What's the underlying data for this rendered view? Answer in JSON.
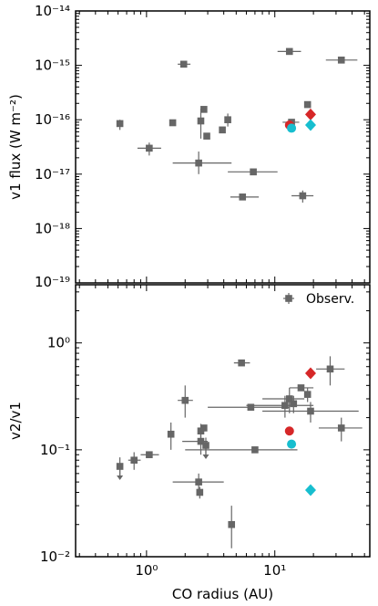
{
  "colors": {
    "observed": "#666666",
    "model_red": "#d62728",
    "model_cyan": "#17becf",
    "axes": "#000000"
  },
  "chart_data": [
    {
      "type": "scatter",
      "panel": "top",
      "xscale": "log",
      "yscale": "log",
      "xlim": [
        0.28,
        55
      ],
      "ylim": [
        1e-19,
        1e-14
      ],
      "xlabel": "",
      "ylabel": "v1 flux (W m⁻²)",
      "xticklabels": [],
      "ytick_values": [
        -19,
        -18,
        -17,
        -16,
        -15,
        -14
      ],
      "series": [
        {
          "kind": "observed",
          "marker": "square",
          "color": "#666666",
          "points": [
            {
              "x": 0.62,
              "y": 8.5e-17,
              "xerr": [
                0.6,
                0.64
              ],
              "yerr": [
                6.5e-17,
                1e-16
              ]
            },
            {
              "x": 1.05,
              "y": 3e-17,
              "xerr": [
                0.85,
                1.3
              ],
              "yerr": [
                2.2e-17,
                3.8e-17
              ]
            },
            {
              "x": 1.6,
              "y": 8.8e-17
            },
            {
              "x": 1.95,
              "y": 1.05e-15,
              "xerr": [
                1.75,
                2.2
              ]
            },
            {
              "x": 2.55,
              "y": 1.6e-17,
              "xerr": [
                1.6,
                4.6
              ],
              "yerr": [
                1e-17,
                2.6e-17
              ]
            },
            {
              "x": 2.65,
              "y": 9.5e-17,
              "yerr": [
                4.5e-17,
                1.6e-16
              ]
            },
            {
              "x": 2.8,
              "y": 1.55e-16
            },
            {
              "x": 2.95,
              "y": 5e-17
            },
            {
              "x": 3.9,
              "y": 6.5e-17
            },
            {
              "x": 4.3,
              "y": 1e-16,
              "yerr": [
                7.5e-17,
                1.3e-16
              ]
            },
            {
              "x": 5.6,
              "y": 3.8e-18,
              "xerr": [
                4.5,
                7.5
              ]
            },
            {
              "x": 6.8,
              "y": 1.1e-17,
              "xerr": [
                4.3,
                10.5
              ]
            },
            {
              "x": 13.0,
              "y": 1.8e-15,
              "xerr": [
                10.5,
                16.0
              ]
            },
            {
              "x": 13.5,
              "y": 9e-17,
              "xerr": [
                11.5,
                15.5
              ]
            },
            {
              "x": 16.5,
              "y": 4e-18,
              "xerr": [
                13.5,
                20.0
              ],
              "yerr": [
                3e-18,
                5e-18
              ]
            },
            {
              "x": 18.0,
              "y": 1.9e-16
            },
            {
              "x": 33.0,
              "y": 1.25e-15,
              "xerr": [
                25.0,
                44.0
              ]
            }
          ]
        },
        {
          "kind": "model",
          "marker": "circle",
          "color": "#d62728",
          "points": [
            {
              "x": 13.0,
              "y": 8e-17
            }
          ]
        },
        {
          "kind": "model",
          "marker": "circle",
          "color": "#17becf",
          "points": [
            {
              "x": 13.5,
              "y": 7e-17
            }
          ]
        },
        {
          "kind": "model",
          "marker": "diamond",
          "color": "#d62728",
          "points": [
            {
              "x": 19.0,
              "y": 1.25e-16
            }
          ]
        },
        {
          "kind": "model",
          "marker": "diamond",
          "color": "#17becf",
          "points": [
            {
              "x": 19.0,
              "y": 8e-17
            }
          ]
        }
      ]
    },
    {
      "type": "scatter",
      "panel": "bottom",
      "xscale": "log",
      "yscale": "log",
      "xlim": [
        0.28,
        55
      ],
      "ylim": [
        0.01,
        3.5
      ],
      "xlabel": "CO radius (AU)",
      "ylabel": "v2/v1",
      "xticklabels": [
        "10⁰",
        "10¹"
      ],
      "ytick_values": [
        -2,
        -1,
        0
      ],
      "legend": {
        "position": "top-right",
        "entries": [
          "Observ."
        ]
      },
      "series": [
        {
          "kind": "observed",
          "name": "Observ.",
          "marker": "square",
          "color": "#666666",
          "points": [
            {
              "x": 0.62,
              "y": 0.07,
              "xerr": [
                0.6,
                0.64
              ],
              "yerr": [
                0.055,
                0.085
              ],
              "upper": true
            },
            {
              "x": 0.8,
              "y": 0.08,
              "xerr": [
                0.72,
                0.9
              ],
              "yerr": [
                0.065,
                0.095
              ]
            },
            {
              "x": 1.05,
              "y": 0.09,
              "xerr": [
                0.9,
                1.25
              ]
            },
            {
              "x": 1.55,
              "y": 0.14,
              "yerr": [
                0.1,
                0.18
              ]
            },
            {
              "x": 2.0,
              "y": 0.29,
              "xerr": [
                1.75,
                2.3
              ],
              "yerr": [
                0.2,
                0.4
              ]
            },
            {
              "x": 2.55,
              "y": 0.05,
              "xerr": [
                1.6,
                4.0
              ],
              "yerr": [
                0.04,
                0.06
              ]
            },
            {
              "x": 2.6,
              "y": 0.04,
              "yerr": [
                0.035,
                0.045
              ]
            },
            {
              "x": 2.65,
              "y": 0.15,
              "yerr": [
                0.12,
                0.175
              ]
            },
            {
              "x": 2.65,
              "y": 0.12,
              "xerr": [
                1.9,
                3.0
              ],
              "yerr": [
                0.09,
                0.15
              ]
            },
            {
              "x": 2.8,
              "y": 0.16
            },
            {
              "x": 2.9,
              "y": 0.11,
              "yerr": [
                0.09,
                0.13
              ],
              "upper": true
            },
            {
              "x": 4.6,
              "y": 0.02,
              "yerr": [
                0.012,
                0.03
              ]
            },
            {
              "x": 5.5,
              "y": 0.65,
              "xerr": [
                4.8,
                6.4
              ]
            },
            {
              "x": 6.5,
              "y": 0.25,
              "xerr": [
                3.0,
                13.0
              ]
            },
            {
              "x": 7.0,
              "y": 0.1,
              "xerr": [
                2.0,
                15.0
              ]
            },
            {
              "x": 12.0,
              "y": 0.26,
              "xerr": [
                6.0,
                20.0
              ],
              "yerr": [
                0.2,
                0.32
              ]
            },
            {
              "x": 13.0,
              "y": 0.3,
              "xerr": [
                8.0,
                17.0
              ],
              "yerr": [
                0.22,
                0.38
              ]
            },
            {
              "x": 14.0,
              "y": 0.27,
              "yerr": [
                0.22,
                0.32
              ]
            },
            {
              "x": 16.0,
              "y": 0.38,
              "xerr": [
                13.0,
                20.0
              ]
            },
            {
              "x": 18.0,
              "y": 0.33,
              "yerr": [
                0.28,
                0.38
              ]
            },
            {
              "x": 19.0,
              "y": 0.23,
              "xerr": [
                8.0,
                45.0
              ],
              "yerr": [
                0.18,
                0.28
              ]
            },
            {
              "x": 27.0,
              "y": 0.57,
              "xerr": [
                21.0,
                35.0
              ],
              "yerr": [
                0.4,
                0.75
              ]
            },
            {
              "x": 33.0,
              "y": 0.16,
              "xerr": [
                22.0,
                48.0
              ],
              "yerr": [
                0.12,
                0.2
              ]
            }
          ]
        },
        {
          "kind": "model",
          "marker": "circle",
          "color": "#d62728",
          "points": [
            {
              "x": 13.0,
              "y": 0.15
            }
          ]
        },
        {
          "kind": "model",
          "marker": "circle",
          "color": "#17becf",
          "points": [
            {
              "x": 13.5,
              "y": 0.113
            }
          ]
        },
        {
          "kind": "model",
          "marker": "diamond",
          "color": "#d62728",
          "points": [
            {
              "x": 19.0,
              "y": 0.52
            }
          ]
        },
        {
          "kind": "model",
          "marker": "diamond",
          "color": "#17becf",
          "points": [
            {
              "x": 19.0,
              "y": 0.042
            }
          ]
        }
      ]
    }
  ]
}
